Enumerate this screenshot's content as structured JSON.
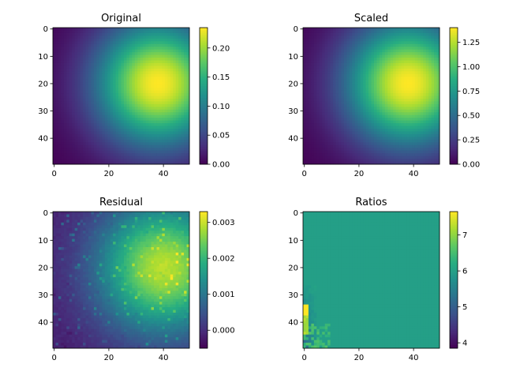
{
  "figure": {
    "background": "#ffffff",
    "colormap": "viridis"
  },
  "chart_data": [
    {
      "type": "heatmap",
      "title": "Original",
      "field": "gaussian",
      "grid_size": 50,
      "peak": [
        20,
        38
      ],
      "value_range": [
        0,
        0.235
      ],
      "x_ticks": [
        0,
        20,
        40
      ],
      "y_ticks": [
        0,
        10,
        20,
        30,
        40
      ],
      "colorbar_ticks": [
        "0.00",
        "0.05",
        "0.10",
        "0.15",
        "0.20"
      ],
      "colorbar_values": [
        0,
        0.05,
        0.1,
        0.15,
        0.2
      ],
      "colorbar_range": [
        0,
        0.235
      ]
    },
    {
      "type": "heatmap",
      "title": "Scaled",
      "field": "gaussian",
      "grid_size": 50,
      "peak": [
        20,
        38
      ],
      "value_range": [
        0,
        1.4
      ],
      "x_ticks": [
        0,
        20,
        40
      ],
      "y_ticks": [
        0,
        10,
        20,
        30,
        40
      ],
      "colorbar_ticks": [
        "0.00",
        "0.25",
        "0.50",
        "0.75",
        "1.00",
        "1.25"
      ],
      "colorbar_values": [
        0,
        0.25,
        0.5,
        0.75,
        1.0,
        1.25
      ],
      "colorbar_range": [
        0,
        1.4
      ]
    },
    {
      "type": "heatmap",
      "title": "Residual",
      "field": "residual",
      "grid_size": 50,
      "peak": [
        20,
        40
      ],
      "value_range": [
        -0.0005,
        0.0033
      ],
      "x_ticks": [
        0,
        20,
        40
      ],
      "y_ticks": [
        0,
        10,
        20,
        30,
        40
      ],
      "colorbar_ticks": [
        "0.000",
        "0.001",
        "0.002",
        "0.003"
      ],
      "colorbar_values": [
        0,
        0.001,
        0.002,
        0.003
      ],
      "colorbar_range": [
        -0.0005,
        0.0033
      ]
    },
    {
      "type": "heatmap",
      "title": "Ratios",
      "field": "ratio",
      "grid_size": 50,
      "typical_value": 6.0,
      "value_range": [
        3.85,
        7.65
      ],
      "x_ticks": [
        0,
        20,
        40
      ],
      "y_ticks": [
        0,
        10,
        20,
        30,
        40
      ],
      "colorbar_ticks": [
        "4",
        "5",
        "6",
        "7"
      ],
      "colorbar_values": [
        4,
        5,
        6,
        7
      ],
      "colorbar_range": [
        3.85,
        7.65
      ]
    }
  ]
}
